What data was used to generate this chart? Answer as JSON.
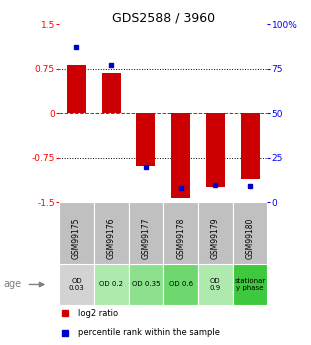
{
  "title": "GDS2588 / 3960",
  "samples": [
    "GSM99175",
    "GSM99176",
    "GSM99177",
    "GSM99178",
    "GSM99179",
    "GSM99180"
  ],
  "log2_ratios": [
    0.82,
    0.68,
    -0.88,
    -1.42,
    -1.25,
    -1.1
  ],
  "percentile_ranks": [
    87,
    77,
    20,
    8,
    10,
    9
  ],
  "ylim_left": [
    -1.5,
    1.5
  ],
  "ylim_right": [
    0,
    100
  ],
  "yticks_left": [
    -1.5,
    -0.75,
    0,
    0.75,
    1.5
  ],
  "yticks_right": [
    0,
    25,
    50,
    75,
    100
  ],
  "ytick_labels_left": [
    "-1.5",
    "-0.75",
    "0",
    "0.75",
    "1.5"
  ],
  "ytick_labels_right": [
    "0",
    "25",
    "50",
    "75",
    "100%"
  ],
  "hlines": [
    0.75,
    0,
    -0.75
  ],
  "hline_styles": [
    "dotted",
    "dashed",
    "dotted"
  ],
  "hline_colors": [
    "black",
    "red",
    "black"
  ],
  "bar_color": "#cc0000",
  "dot_color": "#0000cc",
  "bar_width": 0.55,
  "age_labels": [
    "OD\n0.03",
    "OD 0.2",
    "OD 0.35",
    "OD 0.6",
    "OD\n0.9",
    "stationar\ny phase"
  ],
  "age_bg_colors": [
    "#d3d3d3",
    "#aeeaae",
    "#8de08d",
    "#6ed86e",
    "#aeeaae",
    "#3ec83e"
  ],
  "sample_bg_color": "#c0c0c0",
  "legend_red_label": "log2 ratio",
  "legend_blue_label": "percentile rank within the sample",
  "figsize": [
    3.11,
    3.45
  ],
  "dpi": 100
}
